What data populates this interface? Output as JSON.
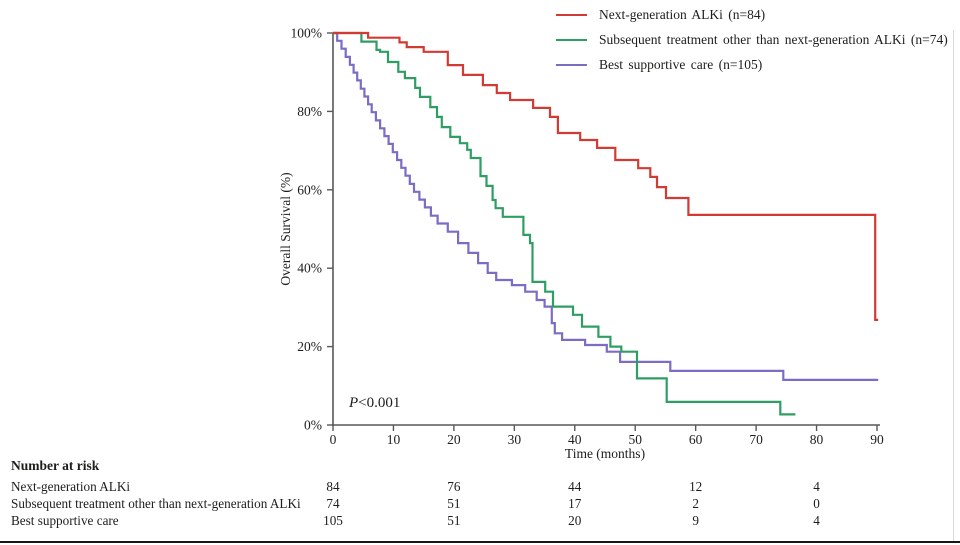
{
  "figure": {
    "bottom_rule": true
  },
  "chart_data": {
    "type": "line",
    "subtype": "kaplan-meier-step",
    "title": "",
    "xlabel": "Time (months)",
    "ylabel": "Overall Survival (%)",
    "xlim": [
      0,
      90
    ],
    "ylim": [
      0,
      100
    ],
    "x_ticks": [
      0,
      10,
      20,
      30,
      40,
      50,
      60,
      70,
      80,
      90
    ],
    "y_ticks": [
      0,
      20,
      40,
      60,
      80,
      100
    ],
    "y_tick_suffix": "%",
    "grid": false,
    "legend_position": "top-right",
    "annotation": {
      "italic_part": "P",
      "rest_part": "<0.001"
    },
    "axis_color": "#58585a",
    "text_color": "#1d1d1b",
    "series": [
      {
        "name": "Best supportive care (n=105)",
        "color": "#7c6cc4",
        "points": [
          [
            0,
            100
          ],
          [
            0.7,
            98
          ],
          [
            1.4,
            96
          ],
          [
            2.1,
            93.9
          ],
          [
            2.8,
            91.9
          ],
          [
            3.4,
            89.9
          ],
          [
            4,
            87.9
          ],
          [
            4.6,
            85.8
          ],
          [
            5.2,
            83.8
          ],
          [
            5.8,
            81.8
          ],
          [
            6.4,
            79.8
          ],
          [
            7.1,
            77.7
          ],
          [
            7.8,
            75.7
          ],
          [
            8.5,
            73.7
          ],
          [
            9.2,
            71.7
          ],
          [
            9.9,
            69.6
          ],
          [
            10.6,
            67.6
          ],
          [
            11.3,
            65.6
          ],
          [
            12,
            63.6
          ],
          [
            12.7,
            61.5
          ],
          [
            13.4,
            59.5
          ],
          [
            14.3,
            57.5
          ],
          [
            15.2,
            55.5
          ],
          [
            16.2,
            53.4
          ],
          [
            17.3,
            51.4
          ],
          [
            19,
            49.3
          ],
          [
            20.7,
            46.4
          ],
          [
            22.4,
            43.9
          ],
          [
            24,
            41.3
          ],
          [
            25.6,
            38.8
          ],
          [
            27,
            37
          ],
          [
            29.6,
            35.7
          ],
          [
            31.8,
            34
          ],
          [
            33.7,
            31.9
          ],
          [
            35,
            30.2
          ],
          [
            36.2,
            26
          ],
          [
            36.7,
            23.4
          ],
          [
            37.9,
            21.7
          ],
          [
            41.7,
            20.4
          ],
          [
            45.3,
            18.7
          ],
          [
            47.5,
            16.1
          ],
          [
            55.8,
            13.8
          ],
          [
            74.5,
            11.5
          ],
          [
            90.2,
            11.5
          ]
        ]
      },
      {
        "name": "Subsequent treatment other than next-generation ALKi (n=74)",
        "color": "#2f9e63",
        "points": [
          [
            0,
            100
          ],
          [
            4.7,
            97.8
          ],
          [
            7.2,
            95.7
          ],
          [
            7.8,
            95.2
          ],
          [
            9.1,
            92.6
          ],
          [
            10.8,
            90.1
          ],
          [
            11.9,
            88.5
          ],
          [
            13.6,
            86
          ],
          [
            14.4,
            83.7
          ],
          [
            16.1,
            81.1
          ],
          [
            17.2,
            78.6
          ],
          [
            18,
            76
          ],
          [
            19.4,
            73.5
          ],
          [
            21,
            71.9
          ],
          [
            22.2,
            70.2
          ],
          [
            22.8,
            68.1
          ],
          [
            24.4,
            63.5
          ],
          [
            25.4,
            61
          ],
          [
            26.4,
            57.4
          ],
          [
            26.9,
            55.3
          ],
          [
            28.1,
            53.1
          ],
          [
            31.5,
            48.5
          ],
          [
            32.6,
            46.4
          ],
          [
            33,
            36.5
          ],
          [
            35.1,
            34
          ],
          [
            36.4,
            30.2
          ],
          [
            39.7,
            28.1
          ],
          [
            41.2,
            25.1
          ],
          [
            43.9,
            22.5
          ],
          [
            45.9,
            20
          ],
          [
            47.7,
            18.7
          ],
          [
            50.3,
            11.9
          ],
          [
            55.2,
            5.9
          ],
          [
            74,
            2.7
          ],
          [
            76.5,
            2.7
          ]
        ]
      },
      {
        "name": "Next-generation ALKi (n=84)",
        "color": "#d23a34",
        "points": [
          [
            0,
            100
          ],
          [
            5.8,
            98.8
          ],
          [
            11,
            97.6
          ],
          [
            12.2,
            96.4
          ],
          [
            15,
            95.2
          ],
          [
            19,
            91.8
          ],
          [
            21.5,
            89.3
          ],
          [
            24.8,
            86.7
          ],
          [
            27.1,
            84.7
          ],
          [
            29.3,
            82.9
          ],
          [
            33.1,
            80.9
          ],
          [
            35.9,
            78.6
          ],
          [
            37.2,
            74.5
          ],
          [
            40.9,
            72.7
          ],
          [
            43.7,
            70.7
          ],
          [
            46.7,
            67.6
          ],
          [
            50.5,
            65.5
          ],
          [
            52.5,
            63.3
          ],
          [
            53.6,
            60.7
          ],
          [
            55.1,
            57.9
          ],
          [
            58.8,
            53.6
          ],
          [
            89.7,
            26.8
          ],
          [
            90.2,
            26.8
          ]
        ]
      }
    ],
    "risk_table": {
      "title": "Number at risk",
      "times": [
        0,
        20,
        40,
        60,
        80
      ],
      "rows": [
        {
          "label": "Next-generation ALKi",
          "counts": [
            "84",
            "76",
            "44",
            "12",
            "4"
          ]
        },
        {
          "label": "Subsequent treatment other than next-generation ALKi",
          "counts": [
            "74",
            "51",
            "17",
            "2",
            "0"
          ]
        },
        {
          "label": "Best supportive care",
          "counts": [
            "105",
            "51",
            "20",
            "9",
            "4"
          ]
        }
      ]
    }
  }
}
